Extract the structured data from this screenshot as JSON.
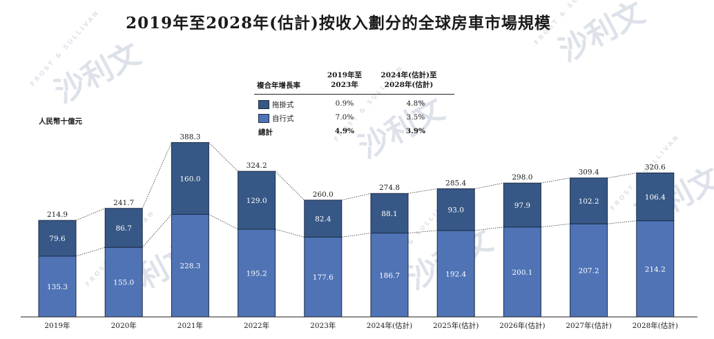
{
  "chart_data": {
    "type": "bar",
    "stacked": true,
    "title": "2019年至2028年(估計)按收入劃分的全球房車市場規模",
    "ylabel": "人民幣十億元",
    "categories": [
      "2019年",
      "2020年",
      "2021年",
      "2022年",
      "2023年",
      "2024年(估計)",
      "2025年(估計)",
      "2026年(估計)",
      "2027年(估計)",
      "2028年(估計)"
    ],
    "series": [
      {
        "name": "自行式",
        "color": "#4f73b5",
        "values": [
          135.3,
          155.0,
          228.3,
          195.2,
          177.6,
          186.7,
          192.4,
          200.1,
          207.2,
          214.2
        ]
      },
      {
        "name": "拖掛式",
        "color": "#375886",
        "values": [
          79.6,
          86.7,
          160.0,
          129.0,
          82.4,
          88.1,
          93.0,
          97.9,
          102.2,
          106.4
        ]
      }
    ],
    "totals": [
      214.9,
      241.7,
      388.3,
      324.2,
      260.0,
      274.8,
      285.4,
      298.0,
      309.4,
      320.6
    ],
    "ylim": [
      0,
      400
    ]
  },
  "cagr_table": {
    "header_label": "複合年增長率",
    "period1_line1": "2019年至",
    "period1_line2": "2023年",
    "period2_line1": "2024年(估計)至",
    "period2_line2": "2028年(估計)",
    "rows": [
      {
        "label": "拖掛式",
        "color": "#375886",
        "v1": "0.9%",
        "v2": "4.8%"
      },
      {
        "label": "自行式",
        "color": "#4f73b5",
        "v1": "7.0%",
        "v2": "3.5%"
      }
    ],
    "total": {
      "label": "總計",
      "v1": "4.9%",
      "v2": "3.9%"
    }
  },
  "watermark": {
    "text": "沙利文",
    "subtext": "FROST & SULLIVAN"
  }
}
